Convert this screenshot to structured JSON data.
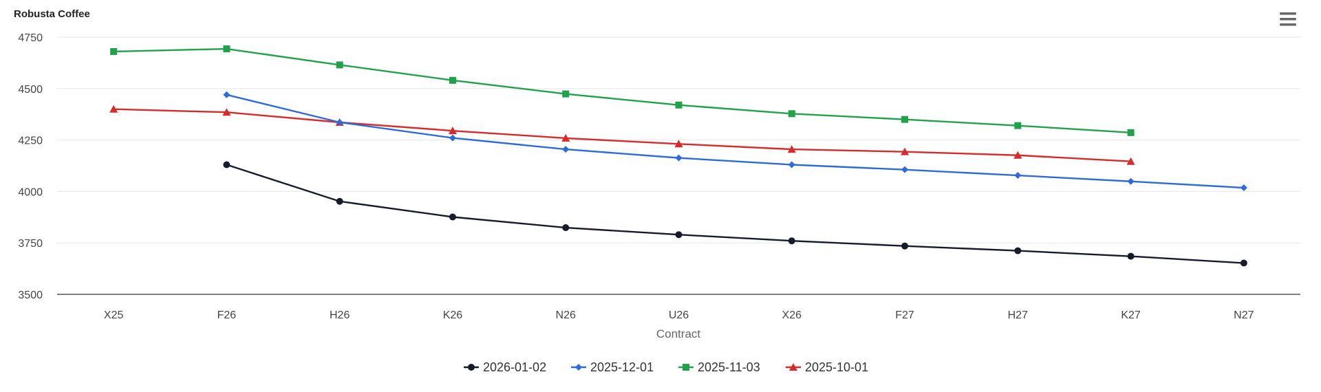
{
  "chart_data": {
    "type": "line",
    "title": "Robusta Coffee",
    "xlabel": "Contract",
    "ylabel": "",
    "categories": [
      "X25",
      "F26",
      "H26",
      "K26",
      "N26",
      "U26",
      "X26",
      "F27",
      "H27",
      "K27",
      "N27"
    ],
    "ylim": [
      3500,
      4750
    ],
    "yticks": [
      3500,
      3750,
      4000,
      4250,
      4500,
      4750
    ],
    "grid": true,
    "legend_position": "bottom-center",
    "series": [
      {
        "name": "2026-01-02",
        "color": "#161b29",
        "marker": "circle",
        "values": [
          null,
          4130,
          3952,
          3876,
          3824,
          3790,
          3760,
          3735,
          3712,
          3685,
          3652
        ]
      },
      {
        "name": "2025-12-01",
        "color": "#2e6bd8",
        "marker": "diamond",
        "values": [
          null,
          4470,
          4336,
          4260,
          4205,
          4163,
          4130,
          4106,
          4078,
          4049,
          4018
        ]
      },
      {
        "name": "2025-11-03",
        "color": "#21a24a",
        "marker": "square",
        "values": [
          4680,
          4693,
          4615,
          4540,
          4474,
          4420,
          4378,
          4350,
          4320,
          4286,
          null
        ]
      },
      {
        "name": "2025-10-01",
        "color": "#d72a2a",
        "marker": "triangle",
        "values": [
          4400,
          4385,
          4336,
          4295,
          4259,
          4231,
          4205,
          4193,
          4176,
          4146,
          null
        ]
      }
    ]
  },
  "menu": {
    "icon": "hamburger-menu-icon"
  }
}
